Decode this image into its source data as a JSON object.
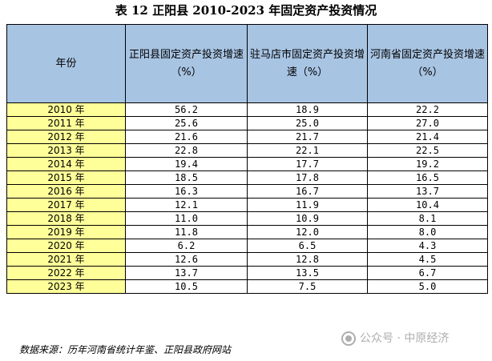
{
  "title": "表 12 正阳县 2010-2023 年固定资产投资情况",
  "headers": {
    "year": "年份",
    "col1": "正阳县固定资产投资增速（%）",
    "col2": "驻马店市固定资产投资增速（%）",
    "col3": "河南省固定资产投资增速（%）"
  },
  "rows": [
    {
      "year": "2010 年",
      "zhengyang": "56.2",
      "zhumadian": "18.9",
      "henan": "22.2"
    },
    {
      "year": "2011 年",
      "zhengyang": "25.6",
      "zhumadian": "25.0",
      "henan": "27.0"
    },
    {
      "year": "2012 年",
      "zhengyang": "21.6",
      "zhumadian": "21.7",
      "henan": "21.4"
    },
    {
      "year": "2013 年",
      "zhengyang": "22.8",
      "zhumadian": "22.1",
      "henan": "22.5"
    },
    {
      "year": "2014 年",
      "zhengyang": "19.4",
      "zhumadian": "17.7",
      "henan": "19.2"
    },
    {
      "year": "2015 年",
      "zhengyang": "18.5",
      "zhumadian": "17.8",
      "henan": "16.5"
    },
    {
      "year": "2016 年",
      "zhengyang": "16.3",
      "zhumadian": "16.7",
      "henan": "13.7"
    },
    {
      "year": "2017 年",
      "zhengyang": "12.1",
      "zhumadian": "11.9",
      "henan": "10.4"
    },
    {
      "year": "2018 年",
      "zhengyang": "11.0",
      "zhumadian": "10.9",
      "henan": "8.1"
    },
    {
      "year": "2019 年",
      "zhengyang": "11.8",
      "zhumadian": "12.0",
      "henan": "8.0"
    },
    {
      "year": "2020 年",
      "zhengyang": "6.2",
      "zhumadian": "6.5",
      "henan": "4.3"
    },
    {
      "year": "2021 年",
      "zhengyang": "12.6",
      "zhumadian": "12.8",
      "henan": "4.5"
    },
    {
      "year": "2022 年",
      "zhengyang": "13.7",
      "zhumadian": "13.5",
      "henan": "6.7"
    },
    {
      "year": "2023 年",
      "zhengyang": "10.5",
      "zhumadian": "7.5",
      "henan": "5.0"
    }
  ],
  "source": "数据来源：历年河南省统计年鉴、正阳县政府网站",
  "watermark": "公众号 · 中原经济"
}
